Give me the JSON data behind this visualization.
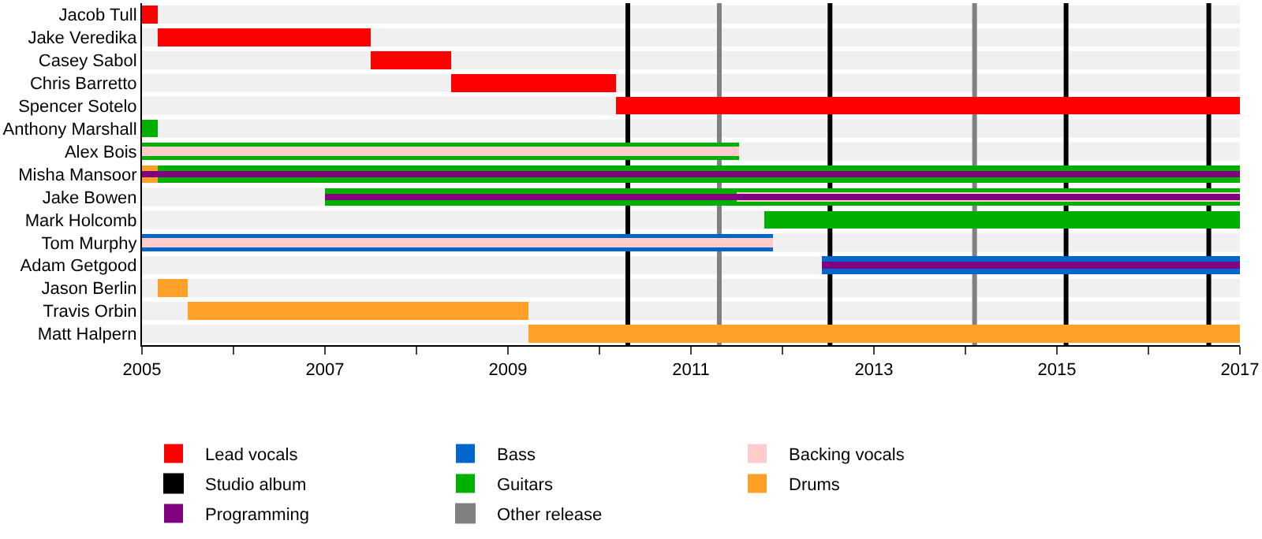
{
  "chart_data": {
    "type": "bar",
    "orientation": "horizontal",
    "legend": "bottom",
    "grid": false,
    "categories": [
      "Jacob Tull",
      "Jake Veredika",
      "Casey Sabol",
      "Chris Barretto",
      "Spencer Sotelo",
      "Anthony Marshall",
      "Alex Bois",
      "Misha Mansoor",
      "Jake Bowen",
      "Mark Holcomb",
      "Tom Murphy",
      "Adam Getgood",
      "Jason Berlin",
      "Travis Orbin",
      "Matt Halpern"
    ],
    "xlim": [
      2005,
      2017
    ],
    "xticks": [
      2005,
      {
        "value": 2006,
        "label": null
      },
      2007,
      {
        "value": 2008,
        "label": null
      },
      2009,
      {
        "value": 2010,
        "label": null
      },
      2011,
      {
        "value": 2012,
        "label": null
      },
      2013,
      {
        "value": 2014,
        "label": null
      },
      2015,
      {
        "value": 2016,
        "label": null
      },
      2017
    ],
    "series": [
      {
        "name": "Lead vocals",
        "color": "#ff0000",
        "base": [
          2005,
          2005.17,
          2007.5,
          2008.38,
          2010.18,
          null,
          null,
          null,
          null,
          null,
          null,
          null,
          null,
          null,
          null
        ],
        "values": [
          0.17,
          2.33,
          0.88,
          1.8,
          6.82,
          null,
          null,
          null,
          null,
          null,
          null,
          null,
          null,
          null,
          null
        ]
      },
      {
        "name": "Guitars",
        "color": "#00b000",
        "base": [
          null,
          null,
          null,
          null,
          null,
          2005,
          2005,
          2005,
          2007,
          2011.8,
          null,
          null,
          null,
          null,
          null
        ],
        "values": [
          null,
          null,
          null,
          null,
          null,
          0.17,
          6.53,
          12,
          10,
          5.2,
          null,
          null,
          null,
          null,
          null
        ]
      },
      {
        "name": "Bass",
        "color": "#0066cc",
        "base": [
          null,
          null,
          null,
          null,
          null,
          null,
          null,
          null,
          null,
          null,
          2005,
          2012.43,
          null,
          null,
          null
        ],
        "values": [
          null,
          null,
          null,
          null,
          null,
          null,
          null,
          null,
          null,
          null,
          6.9,
          4.57,
          null,
          null,
          null
        ]
      },
      {
        "name": "Drums",
        "color": "#ffa028",
        "base": [
          null,
          null,
          null,
          null,
          null,
          null,
          null,
          2005,
          null,
          null,
          null,
          null,
          2005.17,
          2005.5,
          2009.22
        ],
        "values": [
          null,
          null,
          null,
          null,
          null,
          null,
          null,
          0.17,
          null,
          null,
          null,
          null,
          0.33,
          3.72,
          7.78
        ]
      },
      {
        "name": "Backing vocals",
        "color": "#ffcccc",
        "base": [
          null,
          null,
          null,
          null,
          null,
          null,
          2005,
          null,
          2011.5,
          null,
          2005,
          null,
          null,
          null,
          null
        ],
        "values": [
          null,
          null,
          null,
          null,
          null,
          null,
          6.53,
          null,
          5.5,
          null,
          6.9,
          null,
          null,
          null,
          null
        ]
      },
      {
        "name": "Programming",
        "color": "#800080",
        "base": [
          null,
          null,
          null,
          null,
          null,
          null,
          null,
          2005,
          2007,
          null,
          null,
          2012.43,
          null,
          null,
          null
        ],
        "values": [
          null,
          null,
          null,
          null,
          null,
          null,
          null,
          12,
          10,
          null,
          null,
          4.57,
          null,
          null,
          null
        ]
      }
    ],
    "ref_lines": [
      {
        "axis": "x",
        "value": 2010.31,
        "label": "Studio album",
        "color": "#000000"
      },
      {
        "axis": "x",
        "value": 2011.31,
        "label": "Other release",
        "color": "#808080"
      },
      {
        "axis": "x",
        "value": 2012.52,
        "color": "#000000"
      },
      {
        "axis": "x",
        "value": 2014.1,
        "color": "#808080"
      },
      {
        "axis": "x",
        "value": 2015.1,
        "color": "#000000"
      },
      {
        "axis": "x",
        "value": 2016.66,
        "color": "#000000"
      }
    ]
  }
}
